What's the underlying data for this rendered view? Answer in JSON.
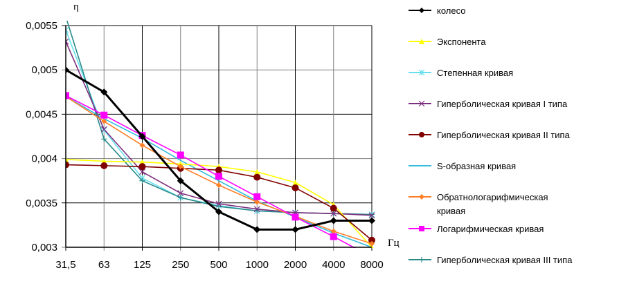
{
  "chart_data": {
    "type": "line",
    "title": "",
    "ylabel": "η",
    "xlabel": "Гц",
    "categories": [
      "31,5",
      "63",
      "125",
      "250",
      "500",
      "1000",
      "2000",
      "4000",
      "8000"
    ],
    "ylim": [
      0.003,
      0.0055
    ],
    "yticks": [
      "0,003",
      "0,0035",
      "0,004",
      "0,0045",
      "0,005",
      "0,0055"
    ],
    "ytick_values": [
      0.003,
      0.0035,
      0.004,
      0.0045,
      0.005,
      0.0055
    ],
    "grid": true,
    "legend_position": "right",
    "series": [
      {
        "name": "колесо",
        "color": "#000000",
        "marker": "diamond",
        "values": [
          0.005,
          0.00475,
          0.00425,
          0.00375,
          0.0034,
          0.0032,
          0.0032,
          0.0033,
          0.0033
        ]
      },
      {
        "name": "Экспонента",
        "color": "#ffff00",
        "marker": "triangle",
        "values": [
          0.00399,
          0.00397,
          0.00396,
          0.00394,
          0.00391,
          0.00385,
          0.00373,
          0.00348,
          0.003
        ]
      },
      {
        "name": "Степенная кривая",
        "color": "#66e0ee",
        "marker": "asterisk",
        "values": [
          0.00545,
          0.00432,
          0.00378,
          0.00356,
          0.00347,
          0.00341,
          0.00339,
          0.00338,
          0.00337
        ]
      },
      {
        "name": "Гиперболическая кривая I типа",
        "color": "#7f2f7f",
        "marker": "x",
        "values": [
          0.00532,
          0.00433,
          0.00385,
          0.00361,
          0.00349,
          0.00343,
          0.00339,
          0.00338,
          0.00336
        ]
      },
      {
        "name": "Гиперболическая кривая II типа",
        "color": "#800000",
        "marker": "circle",
        "values": [
          0.00393,
          0.00392,
          0.00391,
          0.00389,
          0.00387,
          0.00379,
          0.00367,
          0.00344,
          0.00308
        ]
      },
      {
        "name": "S-образная кривая",
        "color": "#33bbdd",
        "marker": "none",
        "values": [
          0.0047,
          0.00445,
          0.00423,
          0.00398,
          0.00375,
          0.00352,
          0.00334,
          0.00316,
          0.003
        ]
      },
      {
        "name": "Обратнологарифмическая кривая",
        "color": "#ff7f27",
        "marker": "diamond",
        "values": [
          0.0047,
          0.00442,
          0.00415,
          0.00391,
          0.0037,
          0.00351,
          0.00335,
          0.00318,
          0.00304
        ]
      },
      {
        "name": "Логарифмическая кривая",
        "color": "#ff00ff",
        "marker": "square",
        "values": [
          0.00471,
          0.00449,
          0.00426,
          0.00404,
          0.0038,
          0.00357,
          0.00334,
          0.00312,
          0.00289
        ]
      },
      {
        "name": "Гиперболическая кривая III типа",
        "color": "#2a8a8a",
        "marker": "plus",
        "values": [
          0.0056,
          0.00422,
          0.00375,
          0.00356,
          0.00346,
          0.00341,
          0.00339,
          0.00338,
          0.00337
        ]
      }
    ]
  }
}
